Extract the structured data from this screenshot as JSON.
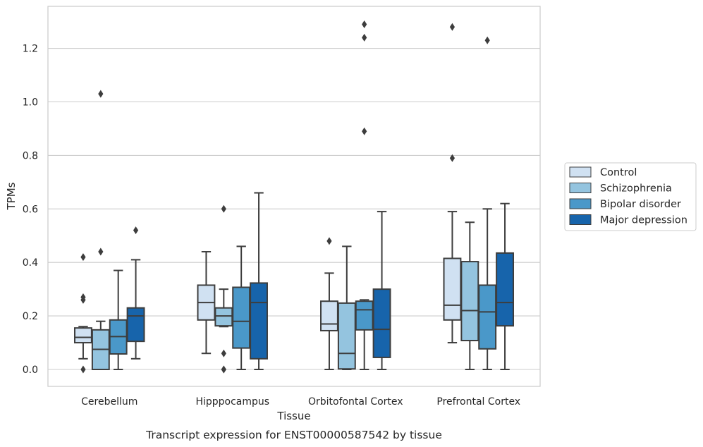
{
  "chart_data": {
    "type": "box",
    "xlabel": "Tissue",
    "ylabel": "TPMs",
    "caption": "Transcript expression for ENST00000587542 by tissue",
    "categories": [
      "Cerebellum",
      "Hipppocampus",
      "Orbitofontal Cortex",
      "Prefrontal Cortex"
    ],
    "ylim": [
      -0.065,
      1.36
    ],
    "yticks": [
      0.0,
      0.2,
      0.4,
      0.6,
      0.8,
      1.0,
      1.2
    ],
    "ytick_labels": [
      "0.0",
      "0.2",
      "0.4",
      "0.6",
      "0.8",
      "1.0",
      "1.2"
    ],
    "grid": "horizontal",
    "legend": {
      "position": "right",
      "entries": [
        "Control",
        "Schizophrenia",
        "Bipolar disorder",
        "Major depression"
      ]
    },
    "series": [
      {
        "name": "Control",
        "color": "#d0e1f2",
        "boxes": [
          {
            "q1": 0.1,
            "median": 0.12,
            "q3": 0.155,
            "whislo": 0.04,
            "whishi": 0.16,
            "fliers": [
              0.42,
              0.27,
              0.26,
              0.0
            ]
          },
          {
            "q1": 0.185,
            "median": 0.25,
            "q3": 0.315,
            "whislo": 0.06,
            "whishi": 0.44,
            "fliers": []
          },
          {
            "q1": 0.145,
            "median": 0.17,
            "q3": 0.255,
            "whislo": 0.0,
            "whishi": 0.36,
            "fliers": [
              0.48
            ]
          },
          {
            "q1": 0.185,
            "median": 0.24,
            "q3": 0.415,
            "whislo": 0.1,
            "whishi": 0.59,
            "fliers": [
              0.79,
              1.28
            ]
          }
        ]
      },
      {
        "name": "Schizophrenia",
        "color": "#94c4df",
        "boxes": [
          {
            "q1": 0.0,
            "median": 0.075,
            "q3": 0.148,
            "whislo": 0.0,
            "whishi": 0.18,
            "fliers": [
              0.44,
              1.03
            ]
          },
          {
            "q1": 0.163,
            "median": 0.2,
            "q3": 0.23,
            "whislo": 0.16,
            "whishi": 0.3,
            "fliers": [
              0.6,
              0.06,
              0.0,
              0.0
            ]
          },
          {
            "q1": 0.002,
            "median": 0.06,
            "q3": 0.248,
            "whislo": 0.0,
            "whishi": 0.46,
            "fliers": []
          },
          {
            "q1": 0.108,
            "median": 0.22,
            "q3": 0.403,
            "whislo": 0.0,
            "whishi": 0.55,
            "fliers": []
          }
        ]
      },
      {
        "name": "Bipolar disorder",
        "color": "#4a98c9",
        "boxes": [
          {
            "q1": 0.058,
            "median": 0.123,
            "q3": 0.185,
            "whislo": 0.0,
            "whishi": 0.37,
            "fliers": []
          },
          {
            "q1": 0.08,
            "median": 0.18,
            "q3": 0.307,
            "whislo": 0.0,
            "whishi": 0.46,
            "fliers": []
          },
          {
            "q1": 0.148,
            "median": 0.223,
            "q3": 0.255,
            "whislo": 0.0,
            "whishi": 0.26,
            "fliers": [
              0.89,
              1.24,
              1.29
            ]
          },
          {
            "q1": 0.077,
            "median": 0.215,
            "q3": 0.315,
            "whislo": 0.0,
            "whishi": 0.6,
            "fliers": [
              1.23
            ]
          }
        ]
      },
      {
        "name": "Major depression",
        "color": "#1764ab",
        "boxes": [
          {
            "q1": 0.105,
            "median": 0.2,
            "q3": 0.23,
            "whislo": 0.04,
            "whishi": 0.41,
            "fliers": [
              0.52
            ]
          },
          {
            "q1": 0.04,
            "median": 0.25,
            "q3": 0.323,
            "whislo": 0.0,
            "whishi": 0.66,
            "fliers": []
          },
          {
            "q1": 0.045,
            "median": 0.15,
            "q3": 0.3,
            "whislo": 0.0,
            "whishi": 0.59,
            "fliers": []
          },
          {
            "q1": 0.163,
            "median": 0.25,
            "q3": 0.435,
            "whislo": 0.0,
            "whishi": 0.62,
            "fliers": []
          }
        ]
      }
    ]
  }
}
